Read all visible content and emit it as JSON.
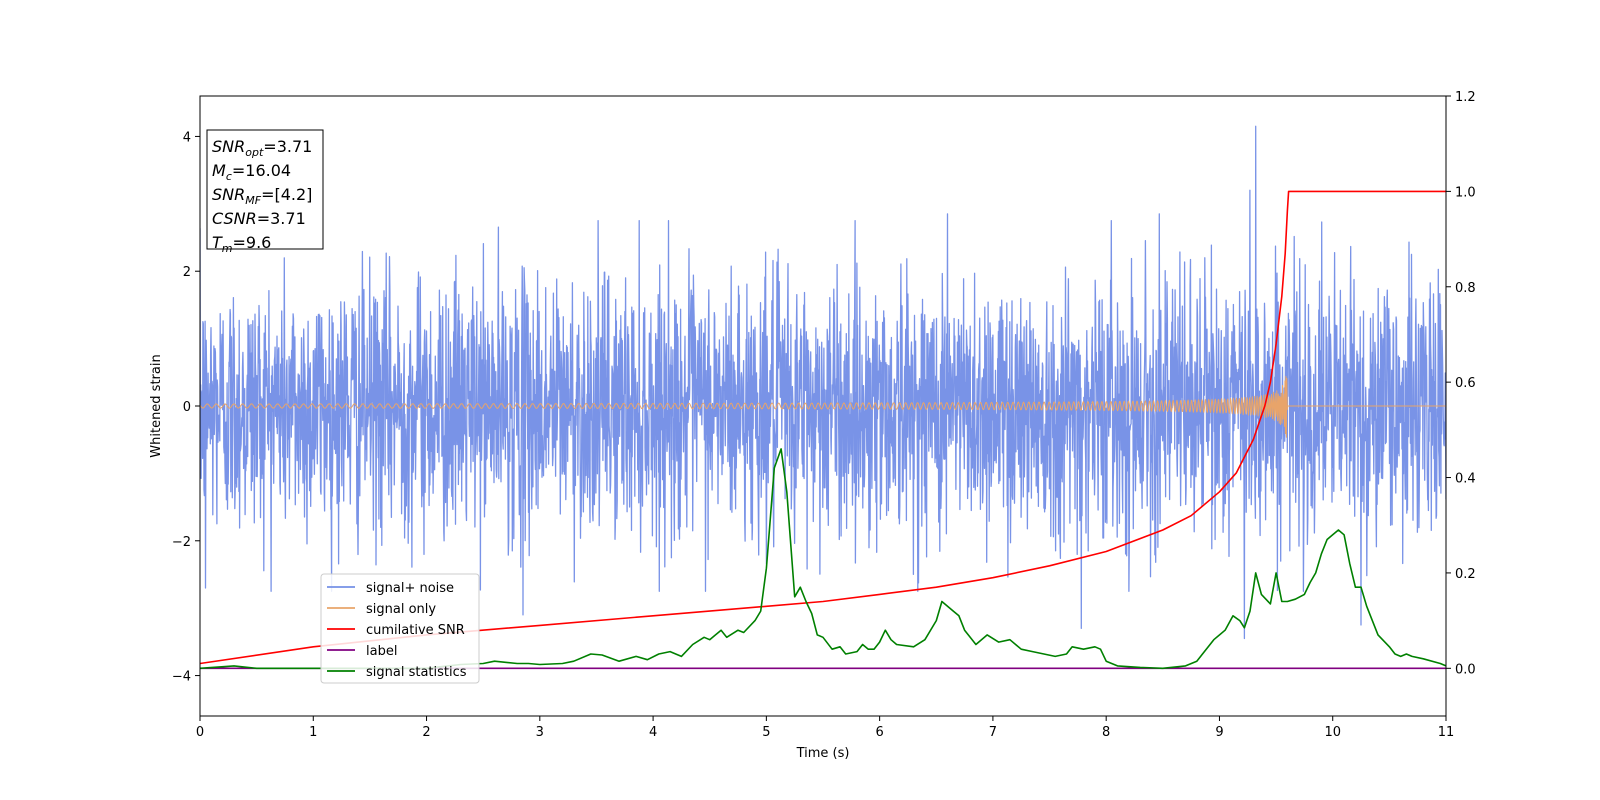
{
  "chart_data": {
    "type": "line",
    "xlabel": "Time (s)",
    "ylabel": "Whitened strain",
    "xlim": [
      0,
      11
    ],
    "ylim": [
      -4.6,
      4.6
    ],
    "y2lim": [
      -0.1,
      1.2
    ],
    "x_ticks": [
      0,
      1,
      2,
      3,
      4,
      5,
      6,
      7,
      8,
      9,
      10,
      11
    ],
    "y_ticks": [
      -4,
      -2,
      0,
      2,
      4
    ],
    "y2_ticks": [
      0.0,
      0.2,
      0.4,
      0.6,
      0.8,
      1.0,
      1.2
    ],
    "grid": false,
    "legend_position": "lower-left",
    "annotation_box": {
      "lines": [
        {
          "sym": "SNR",
          "sub": "opt",
          "val": "=3.71"
        },
        {
          "sym": "M",
          "sub": "c",
          "val": "=16.04"
        },
        {
          "sym": "SNR",
          "sub": "MF",
          "val": "=[4.2]"
        },
        {
          "sym": "CSNR",
          "sub": "",
          "val": "=3.71"
        },
        {
          "sym": "T",
          "sub": "m",
          "val": "=9.6"
        }
      ]
    },
    "series": [
      {
        "name": "signal+ noise",
        "color": "#7590e6",
        "axis": "left",
        "kind": "noise",
        "sigma": 0.95,
        "peaks": [
          [
            9.32,
            4.15
          ],
          [
            5.03,
            -0.55
          ],
          [
            9.27,
            3.2
          ],
          [
            2.85,
            -3.1
          ],
          [
            7.78,
            -3.3
          ],
          [
            10.25,
            -3.25
          ],
          [
            0.05,
            -2.7
          ],
          [
            9.22,
            -3.45
          ],
          [
            8.47,
            2.85
          ],
          [
            6.6,
            2.85
          ]
        ]
      },
      {
        "name": "signal only",
        "color": "#e8a46a",
        "axis": "left",
        "kind": "chirp",
        "coalescence_time": 9.6,
        "peak_amplitude": 0.62
      },
      {
        "name": "cumilative SNR",
        "color": "#ff0000",
        "axis": "right",
        "x": [
          0,
          1,
          2,
          3,
          4,
          5,
          5.5,
          6,
          6.5,
          7,
          7.5,
          8,
          8.5,
          8.75,
          9,
          9.15,
          9.3,
          9.4,
          9.45,
          9.5,
          9.55,
          9.58,
          9.6,
          9.61,
          11
        ],
        "values": [
          0.01,
          0.045,
          0.07,
          0.09,
          0.11,
          0.13,
          0.14,
          0.155,
          0.17,
          0.19,
          0.215,
          0.245,
          0.29,
          0.32,
          0.37,
          0.41,
          0.48,
          0.55,
          0.6,
          0.68,
          0.78,
          0.87,
          0.96,
          1.0,
          1.0
        ]
      },
      {
        "name": "label",
        "color": "#800080",
        "axis": "right",
        "x": [
          0,
          11
        ],
        "values": [
          0.0,
          0.0
        ]
      },
      {
        "name": "signal statistics",
        "color": "#008000",
        "axis": "right",
        "x": [
          0,
          0.3,
          0.5,
          1,
          1.5,
          2,
          2.3,
          2.5,
          2.6,
          2.8,
          2.9,
          3.0,
          3.2,
          3.3,
          3.45,
          3.55,
          3.7,
          3.85,
          3.95,
          4.05,
          4.15,
          4.25,
          4.35,
          4.45,
          4.5,
          4.6,
          4.65,
          4.75,
          4.8,
          4.9,
          4.95,
          5.0,
          5.07,
          5.13,
          5.18,
          5.25,
          5.3,
          5.35,
          5.4,
          5.45,
          5.5,
          5.58,
          5.65,
          5.7,
          5.8,
          5.85,
          5.9,
          5.95,
          6.0,
          6.05,
          6.1,
          6.15,
          6.3,
          6.4,
          6.5,
          6.55,
          6.65,
          6.7,
          6.75,
          6.85,
          6.95,
          7.05,
          7.15,
          7.25,
          7.35,
          7.45,
          7.55,
          7.65,
          7.7,
          7.8,
          7.9,
          7.95,
          8.0,
          8.1,
          8.3,
          8.5,
          8.7,
          8.8,
          8.85,
          8.95,
          9.05,
          9.12,
          9.18,
          9.22,
          9.27,
          9.32,
          9.37,
          9.45,
          9.5,
          9.55,
          9.6,
          9.67,
          9.75,
          9.8,
          9.85,
          9.9,
          9.95,
          10.0,
          10.05,
          10.1,
          10.15,
          10.2,
          10.25,
          10.3,
          10.4,
          10.5,
          10.55,
          10.6,
          10.65,
          10.7,
          10.8,
          10.95,
          11.0
        ],
        "values": [
          0.0,
          0.005,
          0.0,
          0.0,
          0.0,
          0.0,
          0.008,
          0.01,
          0.015,
          0.01,
          0.01,
          0.008,
          0.01,
          0.015,
          0.03,
          0.028,
          0.015,
          0.025,
          0.018,
          0.03,
          0.035,
          0.025,
          0.05,
          0.065,
          0.06,
          0.08,
          0.065,
          0.08,
          0.075,
          0.1,
          0.12,
          0.21,
          0.42,
          0.46,
          0.37,
          0.15,
          0.17,
          0.14,
          0.115,
          0.07,
          0.065,
          0.04,
          0.045,
          0.03,
          0.035,
          0.05,
          0.04,
          0.04,
          0.055,
          0.08,
          0.06,
          0.05,
          0.045,
          0.06,
          0.1,
          0.14,
          0.12,
          0.11,
          0.08,
          0.05,
          0.07,
          0.055,
          0.06,
          0.04,
          0.035,
          0.03,
          0.025,
          0.03,
          0.045,
          0.04,
          0.045,
          0.04,
          0.015,
          0.005,
          0.002,
          0.0,
          0.005,
          0.015,
          0.03,
          0.06,
          0.08,
          0.11,
          0.1,
          0.085,
          0.12,
          0.2,
          0.155,
          0.135,
          0.2,
          0.14,
          0.14,
          0.145,
          0.155,
          0.18,
          0.2,
          0.24,
          0.27,
          0.28,
          0.29,
          0.28,
          0.22,
          0.17,
          0.17,
          0.13,
          0.07,
          0.045,
          0.03,
          0.025,
          0.03,
          0.025,
          0.02,
          0.01,
          0.005
        ]
      }
    ]
  }
}
